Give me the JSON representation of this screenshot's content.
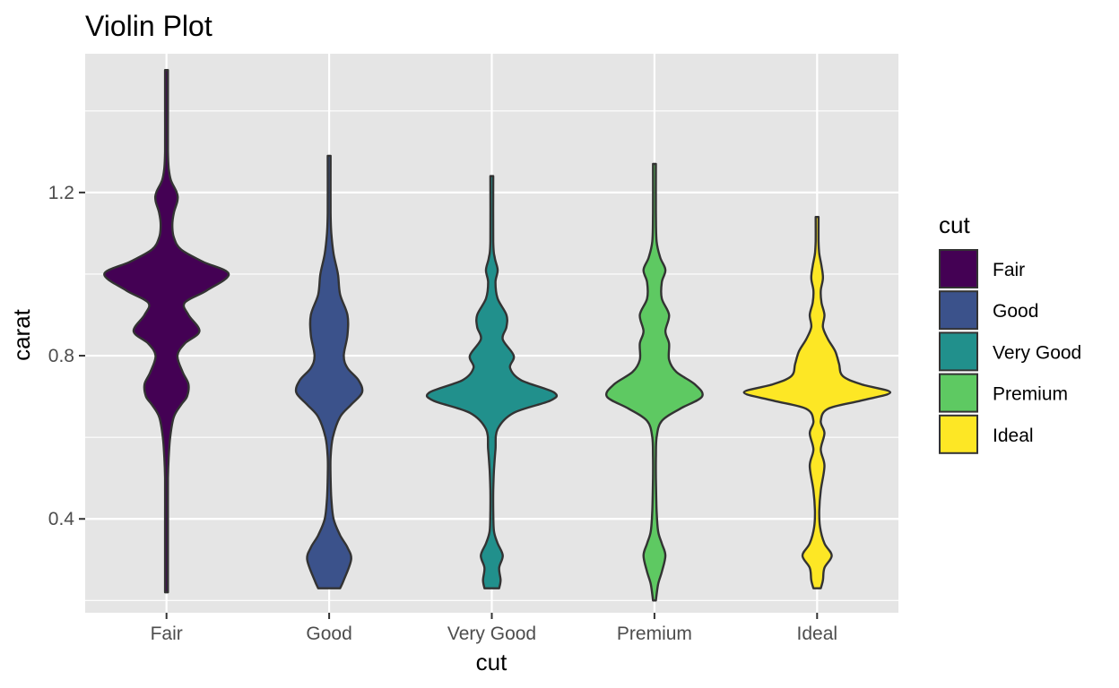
{
  "chart_data": {
    "type": "violin",
    "title": "Violin Plot",
    "xlabel": "cut",
    "ylabel": "carat",
    "categories": [
      "Fair",
      "Good",
      "Very Good",
      "Premium",
      "Ideal"
    ],
    "ylim": [
      0.17,
      1.54
    ],
    "y_ticks": [
      0.4,
      0.8,
      1.2
    ],
    "y_tick_labels": [
      "0.4",
      "0.8",
      "1.2"
    ],
    "grid": true,
    "legend": {
      "title": "cut",
      "position": "right",
      "entries": [
        "Fair",
        "Good",
        "Very Good",
        "Premium",
        "Ideal"
      ]
    },
    "colors": {
      "Fair": "#440154",
      "Good": "#3b528b",
      "Very Good": "#21908c",
      "Premium": "#5ec962",
      "Ideal": "#fde725",
      "panel": "#e5e5e5",
      "grid": "#ffffff",
      "outline": "#333333"
    },
    "series": [
      {
        "name": "Fair",
        "min": 0.22,
        "max": 1.5,
        "density": [
          [
            0.22,
            0.02
          ],
          [
            0.3,
            0.02
          ],
          [
            0.4,
            0.02
          ],
          [
            0.5,
            0.02
          ],
          [
            0.55,
            0.03
          ],
          [
            0.6,
            0.05
          ],
          [
            0.65,
            0.1
          ],
          [
            0.68,
            0.2
          ],
          [
            0.7,
            0.28
          ],
          [
            0.73,
            0.3
          ],
          [
            0.76,
            0.22
          ],
          [
            0.8,
            0.15
          ],
          [
            0.83,
            0.25
          ],
          [
            0.86,
            0.45
          ],
          [
            0.9,
            0.3
          ],
          [
            0.93,
            0.25
          ],
          [
            0.96,
            0.55
          ],
          [
            1.0,
            0.85
          ],
          [
            1.03,
            0.5
          ],
          [
            1.06,
            0.2
          ],
          [
            1.09,
            0.1
          ],
          [
            1.12,
            0.08
          ],
          [
            1.15,
            0.1
          ],
          [
            1.18,
            0.15
          ],
          [
            1.2,
            0.14
          ],
          [
            1.23,
            0.06
          ],
          [
            1.26,
            0.03
          ],
          [
            1.3,
            0.02
          ],
          [
            1.4,
            0.02
          ],
          [
            1.5,
            0.02
          ]
        ]
      },
      {
        "name": "Good",
        "min": 0.23,
        "max": 1.29,
        "density": [
          [
            0.23,
            0.15
          ],
          [
            0.25,
            0.2
          ],
          [
            0.3,
            0.3
          ],
          [
            0.33,
            0.25
          ],
          [
            0.36,
            0.15
          ],
          [
            0.4,
            0.06
          ],
          [
            0.45,
            0.03
          ],
          [
            0.5,
            0.02
          ],
          [
            0.55,
            0.02
          ],
          [
            0.6,
            0.05
          ],
          [
            0.65,
            0.15
          ],
          [
            0.68,
            0.3
          ],
          [
            0.71,
            0.45
          ],
          [
            0.74,
            0.4
          ],
          [
            0.77,
            0.25
          ],
          [
            0.8,
            0.2
          ],
          [
            0.85,
            0.25
          ],
          [
            0.9,
            0.25
          ],
          [
            0.95,
            0.15
          ],
          [
            1.0,
            0.12
          ],
          [
            1.05,
            0.06
          ],
          [
            1.1,
            0.03
          ],
          [
            1.15,
            0.02
          ],
          [
            1.29,
            0.02
          ]
        ]
      },
      {
        "name": "Very Good",
        "min": 0.23,
        "max": 1.24,
        "density": [
          [
            0.23,
            0.1
          ],
          [
            0.25,
            0.12
          ],
          [
            0.28,
            0.1
          ],
          [
            0.31,
            0.15
          ],
          [
            0.34,
            0.08
          ],
          [
            0.37,
            0.03
          ],
          [
            0.42,
            0.02
          ],
          [
            0.47,
            0.02
          ],
          [
            0.52,
            0.03
          ],
          [
            0.57,
            0.05
          ],
          [
            0.62,
            0.08
          ],
          [
            0.66,
            0.3
          ],
          [
            0.69,
            0.8
          ],
          [
            0.71,
            0.85
          ],
          [
            0.74,
            0.4
          ],
          [
            0.77,
            0.25
          ],
          [
            0.8,
            0.3
          ],
          [
            0.84,
            0.15
          ],
          [
            0.87,
            0.2
          ],
          [
            0.9,
            0.2
          ],
          [
            0.94,
            0.08
          ],
          [
            0.98,
            0.05
          ],
          [
            1.01,
            0.08
          ],
          [
            1.04,
            0.04
          ],
          [
            1.08,
            0.02
          ],
          [
            1.24,
            0.02
          ]
        ]
      },
      {
        "name": "Premium",
        "min": 0.2,
        "max": 1.27,
        "density": [
          [
            0.2,
            0.02
          ],
          [
            0.24,
            0.05
          ],
          [
            0.27,
            0.1
          ],
          [
            0.31,
            0.15
          ],
          [
            0.34,
            0.1
          ],
          [
            0.37,
            0.05
          ],
          [
            0.42,
            0.03
          ],
          [
            0.5,
            0.02
          ],
          [
            0.55,
            0.02
          ],
          [
            0.6,
            0.03
          ],
          [
            0.64,
            0.1
          ],
          [
            0.67,
            0.35
          ],
          [
            0.7,
            0.65
          ],
          [
            0.73,
            0.55
          ],
          [
            0.76,
            0.3
          ],
          [
            0.79,
            0.2
          ],
          [
            0.83,
            0.2
          ],
          [
            0.86,
            0.15
          ],
          [
            0.9,
            0.2
          ],
          [
            0.94,
            0.1
          ],
          [
            0.98,
            0.1
          ],
          [
            1.01,
            0.15
          ],
          [
            1.04,
            0.08
          ],
          [
            1.08,
            0.03
          ],
          [
            1.15,
            0.02
          ],
          [
            1.27,
            0.02
          ]
        ]
      },
      {
        "name": "Ideal",
        "min": 0.23,
        "max": 1.14,
        "density": [
          [
            0.23,
            0.05
          ],
          [
            0.25,
            0.08
          ],
          [
            0.28,
            0.1
          ],
          [
            0.31,
            0.2
          ],
          [
            0.34,
            0.1
          ],
          [
            0.38,
            0.04
          ],
          [
            0.42,
            0.03
          ],
          [
            0.47,
            0.05
          ],
          [
            0.53,
            0.1
          ],
          [
            0.57,
            0.05
          ],
          [
            0.61,
            0.1
          ],
          [
            0.64,
            0.05
          ],
          [
            0.67,
            0.15
          ],
          [
            0.69,
            0.6
          ],
          [
            0.71,
            1.0
          ],
          [
            0.73,
            0.6
          ],
          [
            0.75,
            0.35
          ],
          [
            0.78,
            0.3
          ],
          [
            0.81,
            0.25
          ],
          [
            0.84,
            0.15
          ],
          [
            0.87,
            0.08
          ],
          [
            0.9,
            0.1
          ],
          [
            0.93,
            0.06
          ],
          [
            0.96,
            0.05
          ],
          [
            0.99,
            0.08
          ],
          [
            1.02,
            0.06
          ],
          [
            1.05,
            0.03
          ],
          [
            1.08,
            0.02
          ],
          [
            1.14,
            0.02
          ]
        ]
      }
    ]
  }
}
